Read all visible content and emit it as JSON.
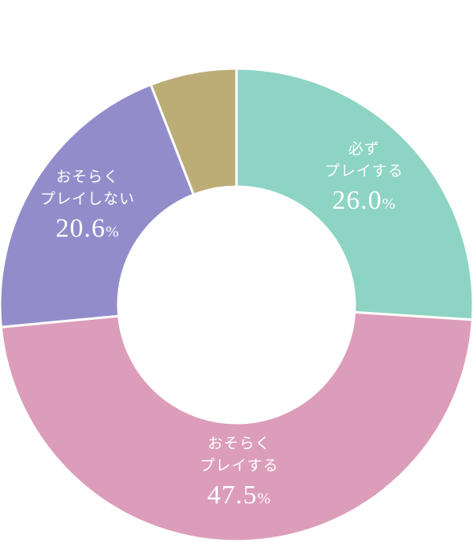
{
  "chart_data": {
    "type": "donut",
    "categories": [
      [
        "必ず",
        "プレイする"
      ],
      [
        "おそらく",
        "プレイする"
      ],
      [
        "おそらく",
        "プレイしない"
      ],
      null
    ],
    "values": [
      26.0,
      47.5,
      20.6,
      5.9
    ],
    "value_labels": [
      "26.0%",
      "47.5%",
      "20.6%",
      null
    ],
    "colors": [
      "#8dd4c4",
      "#dc9dba",
      "#928dca",
      "#bcad77"
    ]
  }
}
